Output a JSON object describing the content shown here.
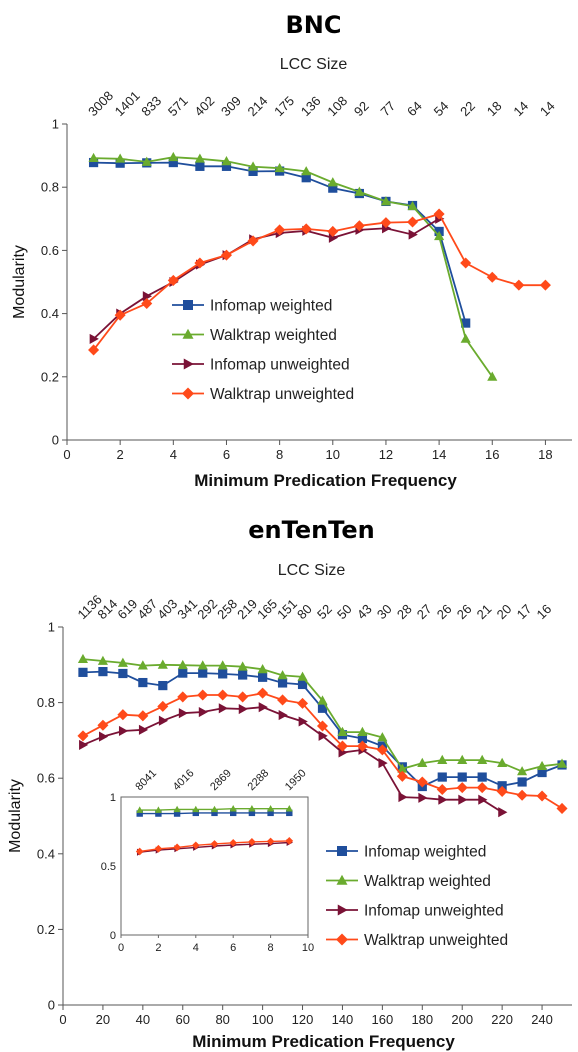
{
  "chart_data": [
    {
      "type": "line",
      "title": "BNC",
      "top_axis_label": "LCC Size",
      "top_ticks": [
        "3008",
        "1401",
        "833",
        "571",
        "402",
        "309",
        "214",
        "175",
        "136",
        "108",
        "92",
        "77",
        "64",
        "54",
        "22",
        "18",
        "14",
        "14"
      ],
      "top_tick_x": [
        1,
        2,
        3,
        4,
        5,
        6,
        7,
        8,
        9,
        10,
        11,
        12,
        13,
        14,
        15,
        16,
        17,
        18
      ],
      "xlabel": "Minimum Predication Frequency",
      "ylabel": "Modularity",
      "xlim": [
        0,
        19
      ],
      "ylim": [
        0,
        1
      ],
      "x_ticks": [
        0,
        2,
        4,
        6,
        8,
        10,
        12,
        14,
        16,
        18
      ],
      "y_ticks": [
        0,
        0.2,
        0.4,
        0.6,
        0.8,
        1
      ],
      "y_tick_labels": [
        "0",
        "0.2",
        "0.4",
        "0.6",
        "0.8",
        "1"
      ],
      "legend": {
        "position": "center"
      },
      "series": [
        {
          "name": "Infomap weighted",
          "color": "#1f4e9c",
          "marker": "square",
          "x": [
            1,
            2,
            3,
            4,
            5,
            6,
            7,
            8,
            9,
            10,
            11,
            12,
            13,
            14,
            15
          ],
          "y": [
            0.878,
            0.876,
            0.877,
            0.878,
            0.866,
            0.866,
            0.85,
            0.851,
            0.83,
            0.797,
            0.78,
            0.755,
            0.742,
            0.66,
            0.37
          ]
        },
        {
          "name": "Walktrap weighted",
          "color": "#6aab2e",
          "marker": "triangle",
          "x": [
            1,
            2,
            3,
            4,
            5,
            6,
            7,
            8,
            9,
            10,
            11,
            12,
            13,
            14,
            15,
            16
          ],
          "y": [
            0.892,
            0.89,
            0.88,
            0.895,
            0.89,
            0.882,
            0.865,
            0.86,
            0.85,
            0.815,
            0.785,
            0.755,
            0.74,
            0.645,
            0.32,
            0.2
          ]
        },
        {
          "name": "Infomap unweighted",
          "color": "#7a1236",
          "marker": "triangle-right",
          "x": [
            1,
            2,
            3,
            4,
            5,
            6,
            7,
            8,
            9,
            10,
            11,
            12,
            13,
            14
          ],
          "y": [
            0.32,
            0.4,
            0.455,
            0.5,
            0.555,
            0.585,
            0.635,
            0.655,
            0.662,
            0.64,
            0.665,
            0.67,
            0.65,
            0.7
          ]
        },
        {
          "name": "Walktrap unweighted",
          "color": "#ff4a1a",
          "marker": "diamond",
          "x": [
            1,
            2,
            3,
            4,
            5,
            6,
            7,
            8,
            9,
            10,
            11,
            12,
            13,
            14,
            15,
            16,
            17,
            18
          ],
          "y": [
            0.285,
            0.395,
            0.432,
            0.505,
            0.56,
            0.585,
            0.63,
            0.665,
            0.668,
            0.66,
            0.678,
            0.688,
            0.69,
            0.715,
            0.56,
            0.515,
            0.49,
            0.49
          ]
        }
      ]
    },
    {
      "type": "line",
      "title": "enTenTen",
      "top_axis_label": "LCC Size",
      "top_ticks": [
        "1136",
        "814",
        "619",
        "487",
        "403",
        "341",
        "292",
        "258",
        "219",
        "165",
        "151",
        "80",
        "52",
        "50",
        "43",
        "30",
        "28",
        "27",
        "26",
        "26",
        "21",
        "20",
        "17",
        "16"
      ],
      "top_tick_x": [
        10,
        20,
        30,
        40,
        50,
        60,
        70,
        80,
        90,
        100,
        110,
        120,
        130,
        140,
        150,
        160,
        170,
        180,
        190,
        200,
        210,
        220,
        230,
        240
      ],
      "xlabel": "Minimum Predication Frequency",
      "ylabel": "Modularity",
      "xlim": [
        0,
        255
      ],
      "ylim": [
        0,
        1
      ],
      "x_ticks": [
        0,
        20,
        40,
        60,
        80,
        100,
        120,
        140,
        160,
        180,
        200,
        220,
        240
      ],
      "y_ticks": [
        0,
        0.2,
        0.4,
        0.6,
        0.8,
        1
      ],
      "y_tick_labels": [
        "0",
        "0.2",
        "0.4",
        "0.6",
        "0.8",
        "1"
      ],
      "legend": {
        "position": "bottom-right"
      },
      "series": [
        {
          "name": "Infomap weighted",
          "color": "#1f4e9c",
          "marker": "square",
          "x": [
            10,
            20,
            30,
            40,
            50,
            60,
            70,
            80,
            90,
            100,
            110,
            120,
            130,
            140,
            150,
            160,
            170,
            180,
            190,
            200,
            210,
            220,
            230,
            240,
            250
          ],
          "y": [
            0.88,
            0.882,
            0.877,
            0.853,
            0.845,
            0.878,
            0.878,
            0.876,
            0.873,
            0.867,
            0.852,
            0.848,
            0.785,
            0.715,
            0.705,
            0.685,
            0.63,
            0.578,
            0.603,
            0.603,
            0.603,
            0.58,
            0.59,
            0.615,
            0.635
          ]
        },
        {
          "name": "Walktrap weighted",
          "color": "#6aab2e",
          "marker": "triangle",
          "x": [
            10,
            20,
            30,
            40,
            50,
            60,
            70,
            80,
            90,
            100,
            110,
            120,
            130,
            140,
            150,
            160,
            170,
            180,
            190,
            200,
            210,
            220,
            230,
            240,
            250
          ],
          "y": [
            0.915,
            0.91,
            0.905,
            0.898,
            0.9,
            0.899,
            0.898,
            0.898,
            0.895,
            0.888,
            0.872,
            0.868,
            0.805,
            0.722,
            0.722,
            0.708,
            0.625,
            0.64,
            0.648,
            0.648,
            0.648,
            0.64,
            0.618,
            0.632,
            0.638
          ]
        },
        {
          "name": "Infomap unweighted",
          "color": "#7a1236",
          "marker": "triangle-right",
          "x": [
            10,
            20,
            30,
            40,
            50,
            60,
            70,
            80,
            90,
            100,
            110,
            120,
            130,
            140,
            150,
            160,
            170,
            180,
            190,
            200,
            210,
            220
          ],
          "y": [
            0.688,
            0.71,
            0.725,
            0.728,
            0.752,
            0.772,
            0.775,
            0.785,
            0.783,
            0.788,
            0.767,
            0.75,
            0.712,
            0.668,
            0.675,
            0.64,
            0.55,
            0.548,
            0.543,
            0.543,
            0.543,
            0.51
          ]
        },
        {
          "name": "Walktrap unweighted",
          "color": "#ff4a1a",
          "marker": "diamond",
          "x": [
            10,
            20,
            30,
            40,
            50,
            60,
            70,
            80,
            90,
            100,
            110,
            120,
            130,
            140,
            150,
            160,
            170,
            180,
            190,
            200,
            210,
            220,
            230,
            240,
            250
          ],
          "y": [
            0.712,
            0.74,
            0.768,
            0.765,
            0.79,
            0.815,
            0.82,
            0.82,
            0.815,
            0.825,
            0.807,
            0.798,
            0.738,
            0.685,
            0.685,
            0.675,
            0.605,
            0.59,
            0.57,
            0.575,
            0.575,
            0.565,
            0.555,
            0.553,
            0.52
          ]
        }
      ],
      "inset": {
        "top_ticks": [
          "8041",
          "4016",
          "2869",
          "2288",
          "1950"
        ],
        "top_tick_x": [
          1,
          3,
          5,
          7,
          9
        ],
        "xlim": [
          0,
          10
        ],
        "ylim": [
          0,
          1
        ],
        "x_ticks": [
          0,
          2,
          4,
          6,
          8,
          10
        ],
        "y_ticks": [
          0,
          0.5,
          1
        ],
        "y_tick_labels": [
          "0",
          "0.5",
          "1"
        ],
        "series": [
          {
            "name": "Infomap weighted",
            "color": "#1f4e9c",
            "marker": "square",
            "x": [
              1,
              2,
              3,
              4,
              5,
              6,
              7,
              8,
              9
            ],
            "y": [
              0.88,
              0.88,
              0.88,
              0.885,
              0.885,
              0.885,
              0.885,
              0.885,
              0.885
            ]
          },
          {
            "name": "Walktrap weighted",
            "color": "#6aab2e",
            "marker": "triangle",
            "x": [
              1,
              2,
              3,
              4,
              5,
              6,
              7,
              8,
              9
            ],
            "y": [
              0.905,
              0.905,
              0.91,
              0.91,
              0.91,
              0.915,
              0.915,
              0.915,
              0.915
            ]
          },
          {
            "name": "Infomap unweighted",
            "color": "#7a1236",
            "marker": "triangle-right",
            "x": [
              1,
              2,
              3,
              4,
              5,
              6,
              7,
              8,
              9
            ],
            "y": [
              0.6,
              0.615,
              0.625,
              0.635,
              0.645,
              0.652,
              0.658,
              0.662,
              0.67
            ]
          },
          {
            "name": "Walktrap unweighted",
            "color": "#ff4a1a",
            "marker": "diamond",
            "x": [
              1,
              2,
              3,
              4,
              5,
              6,
              7,
              8,
              9
            ],
            "y": [
              0.605,
              0.625,
              0.635,
              0.65,
              0.66,
              0.668,
              0.675,
              0.678,
              0.682
            ]
          }
        ]
      }
    }
  ]
}
